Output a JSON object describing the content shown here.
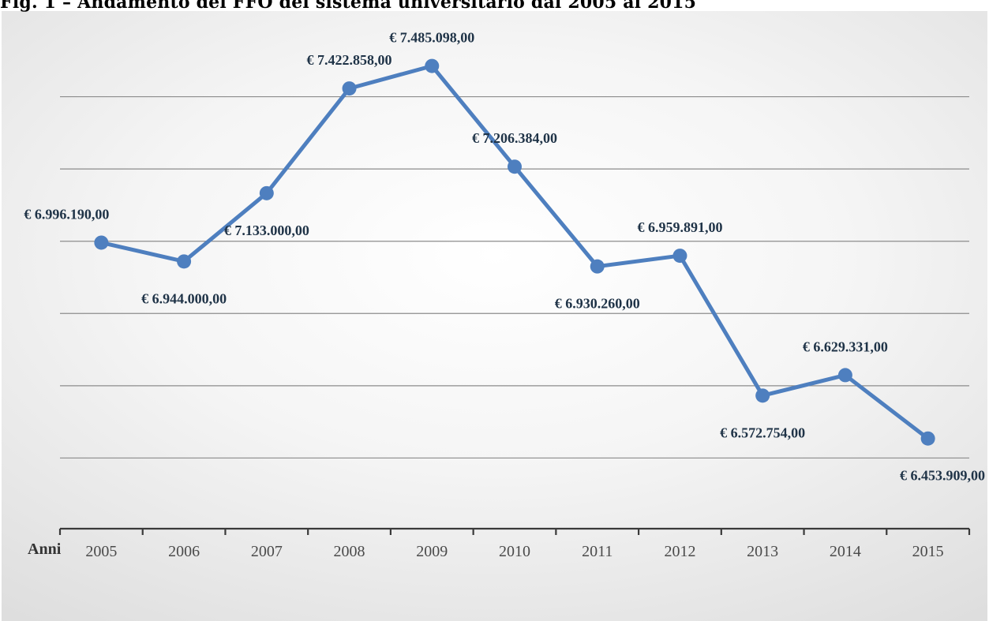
{
  "figure": {
    "title": "Fig. 1 – Andamento del FFO del sistema universitario dal 2005 al 2015"
  },
  "chart_data": {
    "type": "line",
    "title": "Fig. 1 – Andamento del FFO del sistema universitario dal 2005 al 2015",
    "xlabel": "Anni",
    "ylabel": "",
    "categories": [
      "2005",
      "2006",
      "2007",
      "2008",
      "2009",
      "2010",
      "2011",
      "2012",
      "2013",
      "2014",
      "2015"
    ],
    "series": [
      {
        "values": [
          6996190,
          6944000,
          7133000,
          7422858,
          7485098,
          7206384,
          6930260,
          6959891,
          6572754,
          6629331,
          6453909
        ],
        "labels": [
          "€ 6.996.190,00",
          "€ 6.944.000,00",
          "€ 7.133.000,00",
          "€ 7.422.858,00",
          "€ 7.485.098,00",
          "€ 7.206.384,00",
          "€ 6.930.260,00",
          "€ 6.959.891,00",
          "€ 6.572.754,00",
          "€ 6.629.331,00",
          "€ 6.453.909,00"
        ],
        "label_positions": [
          "above",
          "below",
          "below",
          "above",
          "above",
          "above",
          "below",
          "above",
          "below",
          "above",
          "below"
        ]
      }
    ],
    "ylim": [
      6200000,
      7600000
    ],
    "grid": true,
    "color": "#4e7fbf",
    "legend": "none"
  }
}
